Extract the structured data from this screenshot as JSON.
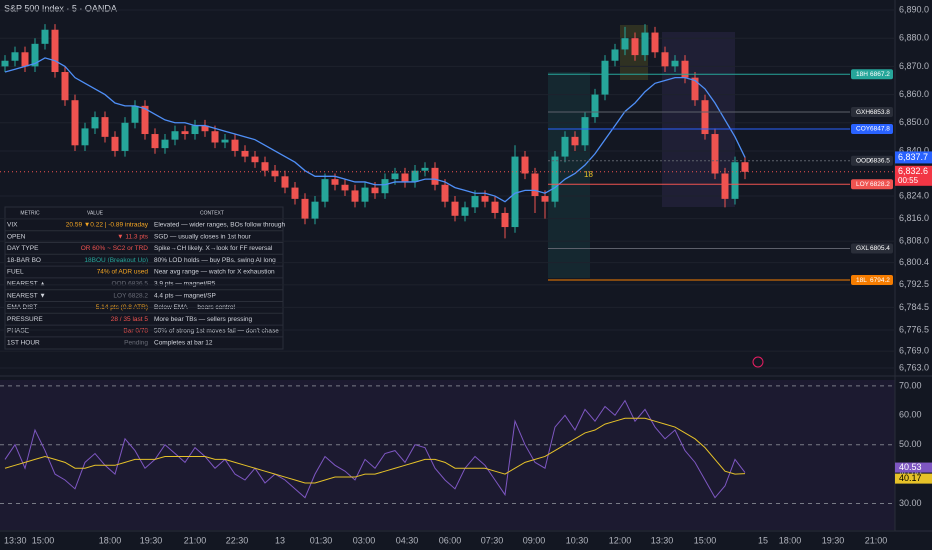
{
  "chart_data": [
    {
      "type": "candlestick",
      "title": "S&P 500 Index · 5 · OANDA",
      "up_color": "#26a69a",
      "down_color": "#ef5350",
      "ema_color": "#4f8ff7",
      "open": [
        6870,
        6872,
        6875,
        6870,
        6878,
        6883,
        6868,
        6858,
        6842,
        6848,
        6852,
        6845,
        6840,
        6850,
        6856,
        6846,
        6841,
        6844,
        6847,
        6846,
        6849,
        6847,
        6843,
        6844,
        6840,
        6838,
        6836,
        6833,
        6831,
        6827,
        6823,
        6816,
        6822,
        6830,
        6828,
        6826,
        6822,
        6827,
        6825,
        6830,
        6832,
        6829,
        6833,
        6834,
        6828,
        6822,
        6817,
        6820,
        6824,
        6822,
        6818,
        6813,
        6838,
        6832,
        6824,
        6822,
        6838,
        6845,
        6842,
        6852,
        6860,
        6872,
        6876,
        6880,
        6874,
        6882,
        6875,
        6870,
        6872,
        6866,
        6858,
        6846,
        6832,
        6823,
        6836
      ],
      "high": [
        6874,
        6877,
        6877,
        6880,
        6885,
        6885,
        6870,
        6860,
        6850,
        6854,
        6854,
        6847,
        6852,
        6858,
        6858,
        6848,
        6846,
        6849,
        6849,
        6851,
        6851,
        6849,
        6846,
        6846,
        6842,
        6840,
        6838,
        6835,
        6833,
        6829,
        6825,
        6824,
        6832,
        6832,
        6830,
        6828,
        6829,
        6829,
        6832,
        6834,
        6834,
        6835,
        6836,
        6836,
        6830,
        6824,
        6822,
        6826,
        6826,
        6824,
        6820,
        6842,
        6840,
        6834,
        6826,
        6840,
        6847,
        6847,
        6854,
        6862,
        6874,
        6878,
        6884,
        6882,
        6885,
        6884,
        6877,
        6874,
        6874,
        6868,
        6860,
        6848,
        6834,
        6838,
        6838
      ],
      "low": [
        6868,
        6870,
        6868,
        6868,
        6876,
        6866,
        6856,
        6840,
        6840,
        6846,
        6843,
        6838,
        6838,
        6848,
        6844,
        6839,
        6839,
        6842,
        6844,
        6844,
        6845,
        6841,
        6841,
        6838,
        6836,
        6834,
        6831,
        6829,
        6825,
        6821,
        6814,
        6814,
        6820,
        6826,
        6824,
        6820,
        6820,
        6823,
        6823,
        6828,
        6827,
        6827,
        6831,
        6826,
        6820,
        6815,
        6815,
        6818,
        6820,
        6816,
        6809,
        6811,
        6830,
        6818,
        6816,
        6820,
        6836,
        6840,
        6840,
        6850,
        6858,
        6870,
        6874,
        6872,
        6872,
        6873,
        6868,
        6868,
        6864,
        6856,
        6844,
        6830,
        6820,
        6821,
        6830
      ],
      "close": [
        6872,
        6875,
        6870,
        6878,
        6883,
        6868,
        6858,
        6842,
        6848,
        6852,
        6845,
        6840,
        6850,
        6856,
        6846,
        6841,
        6844,
        6847,
        6846,
        6849,
        6847,
        6843,
        6844,
        6840,
        6838,
        6836,
        6833,
        6831,
        6827,
        6823,
        6816,
        6822,
        6830,
        6828,
        6826,
        6822,
        6827,
        6825,
        6830,
        6832,
        6829,
        6833,
        6834,
        6828,
        6822,
        6817,
        6820,
        6824,
        6822,
        6818,
        6813,
        6838,
        6832,
        6824,
        6822,
        6838,
        6845,
        6842,
        6852,
        6860,
        6872,
        6876,
        6880,
        6874,
        6882,
        6875,
        6870,
        6872,
        6866,
        6858,
        6846,
        6832,
        6823,
        6836,
        6832.6
      ],
      "close_label": "6,832.6",
      "countdown": "00:55",
      "ema": [
        6868,
        6869,
        6870,
        6871,
        6873,
        6872,
        6870,
        6866,
        6864,
        6862,
        6860,
        6857,
        6856,
        6856,
        6855,
        6853,
        6851,
        6850,
        6850,
        6849,
        6849,
        6848,
        6847,
        6846,
        6845,
        6844,
        6842,
        6840,
        6838,
        6836,
        6833,
        6831,
        6831,
        6831,
        6830,
        6829,
        6829,
        6828,
        6828,
        6829,
        6829,
        6829,
        6830,
        6830,
        6829,
        6827,
        6826,
        6825,
        6825,
        6824,
        6822,
        6825,
        6826,
        6826,
        6825,
        6827,
        6830,
        6832,
        6835,
        6839,
        6844,
        6849,
        6854,
        6857,
        6861,
        6864,
        6865,
        6866,
        6866,
        6865,
        6862,
        6857,
        6851,
        6845,
        6837.7
      ],
      "ema_label": "6,837.7",
      "levels": [
        {
          "name": "18H",
          "value": 6867.2,
          "color": "#26a69a"
        },
        {
          "name": "GXH",
          "value": 6853.8,
          "color": "#5d606b"
        },
        {
          "name": "COY",
          "value": 6847.8,
          "color": "#2962ff"
        },
        {
          "name": "OOD",
          "value": 6836.5,
          "color": "#5d606b"
        },
        {
          "name": "LOY",
          "value": 6828.2,
          "color": "#ef5350"
        },
        {
          "name": "GXL",
          "value": 6805.4,
          "color": "#5d606b"
        },
        {
          "name": "18L",
          "value": 6794.2,
          "color": "#f57c00"
        }
      ],
      "annotation": "18",
      "ylim": [
        6763,
        6890
      ],
      "yticks": [
        {
          "value": 6890,
          "label": "6,890.0"
        },
        {
          "value": 6880,
          "label": "6,880.0"
        },
        {
          "value": 6870,
          "label": "6,870.0"
        },
        {
          "value": 6860,
          "label": "6,860.0"
        },
        {
          "value": 6850,
          "label": "6,850.0"
        },
        {
          "value": 6840,
          "label": "6,840.0"
        },
        {
          "value": 6824,
          "label": "6,824.0"
        },
        {
          "value": 6816,
          "label": "6,816.0"
        },
        {
          "value": 6808,
          "label": "6,808.0"
        },
        {
          "value": 6800.4,
          "label": "6,800.4"
        },
        {
          "value": 6792.5,
          "label": "6,792.5"
        },
        {
          "value": 6784.5,
          "label": "6,784.5"
        },
        {
          "value": 6776.5,
          "label": "6,776.5"
        },
        {
          "value": 6769,
          "label": "6,769.0"
        },
        {
          "value": 6763,
          "label": "6,763.0"
        }
      ]
    },
    {
      "type": "line",
      "series": [
        {
          "name": "RSI",
          "color": "#7e57c2",
          "values": [
            45,
            50,
            42,
            55,
            48,
            40,
            38,
            35,
            44,
            47,
            43,
            40,
            52,
            48,
            42,
            45,
            50,
            47,
            44,
            49,
            46,
            42,
            45,
            40,
            38,
            42,
            37,
            40,
            38,
            35,
            32,
            40,
            46,
            43,
            41,
            38,
            45,
            42,
            47,
            48,
            44,
            50,
            49,
            42,
            38,
            35,
            42,
            46,
            43,
            38,
            33,
            58,
            50,
            44,
            42,
            56,
            60,
            55,
            62,
            58,
            63,
            60,
            65,
            58,
            62,
            56,
            52,
            55,
            48,
            44,
            38,
            32,
            36,
            45,
            40.53
          ],
          "last_label": "40.53"
        },
        {
          "name": "Signal",
          "color": "#e6c229",
          "values": [
            42,
            43,
            44,
            45,
            46,
            45,
            44,
            42,
            42,
            43,
            43,
            43,
            44,
            45,
            45,
            45,
            46,
            46,
            46,
            46,
            46,
            45,
            45,
            44,
            43,
            42,
            41,
            40,
            39,
            38,
            37,
            37,
            38,
            39,
            39,
            39,
            40,
            40,
            41,
            42,
            43,
            44,
            45,
            45,
            44,
            42,
            42,
            42,
            42,
            41,
            40,
            42,
            44,
            45,
            46,
            48,
            50,
            52,
            54,
            55,
            57,
            58,
            59,
            59,
            59,
            58,
            57,
            56,
            54,
            52,
            49,
            45,
            41,
            40,
            40.17
          ],
          "last_label": "40.17"
        }
      ],
      "ylim": [
        21,
        72
      ],
      "yticks": [
        {
          "value": 70,
          "label": "70.00"
        },
        {
          "value": 60,
          "label": "60.00"
        },
        {
          "value": 50,
          "label": "50.00"
        },
        {
          "value": 40,
          "label": "40.00"
        },
        {
          "value": 30,
          "label": "30.00"
        }
      ]
    }
  ],
  "time_axis": [
    "13:30",
    "15:00",
    "18:00",
    "19:30",
    "21:00",
    "22:30",
    "13",
    "01:30",
    "03:00",
    "04:30",
    "06:00",
    "07:30",
    "09:00",
    "10:30",
    "12:00",
    "13:30",
    "15:00",
    "15",
    "18:00",
    "19:30",
    "21:00"
  ],
  "table": {
    "header": [
      "METRIC",
      "VALUE",
      "CONTEXT"
    ],
    "rows": [
      [
        "VIX",
        "20.59 ▼0.22 | -0.89 intraday",
        "Elevated — wider ranges, BOs follow through"
      ],
      [
        "OPEN",
        "▼ 11.3 pts",
        "SGD — usually closes in 1st hour"
      ],
      [
        "DAY TYPE",
        "OR 60% ~ SC2 or TRD",
        "Spike→CH likely. X→look for FF reversal"
      ],
      [
        "18-BAR BO",
        "18BOU (Breakout Up)",
        "80% LOD holds — buy PBs, swing AI long"
      ],
      [
        "FUEL",
        "74% of ADR used",
        "Near avg range — watch for X exhaustion"
      ],
      [
        "NEAREST ▲",
        "OOD 6836.5",
        "3.9 pts — magnet/R5"
      ],
      [
        "NEAREST ▼",
        "LOY 6828.2",
        "4.4 pts — magnet/SP"
      ],
      [
        "EMA DIST",
        "5.14 pts (0.8 ATR)",
        "Below EMA — bears control"
      ],
      [
        "PRESSURE",
        "28 / 35 last 5",
        "More bear TBs — sellers pressing"
      ],
      [
        "PHASE",
        "Bar 0/78",
        "50% of strong 1st moves fail — don't chase"
      ],
      [
        "1ST HOUR",
        "Pending",
        "Completes at bar 12"
      ]
    ],
    "value_colors": [
      "#f5a623",
      "#ef5350",
      "#ef5350",
      "#26a69a",
      "#f5a623",
      "#6a6d78",
      "#6a6d78",
      "#f5a623",
      "#ef5350",
      "#ef5350",
      "#6a6d78"
    ]
  }
}
